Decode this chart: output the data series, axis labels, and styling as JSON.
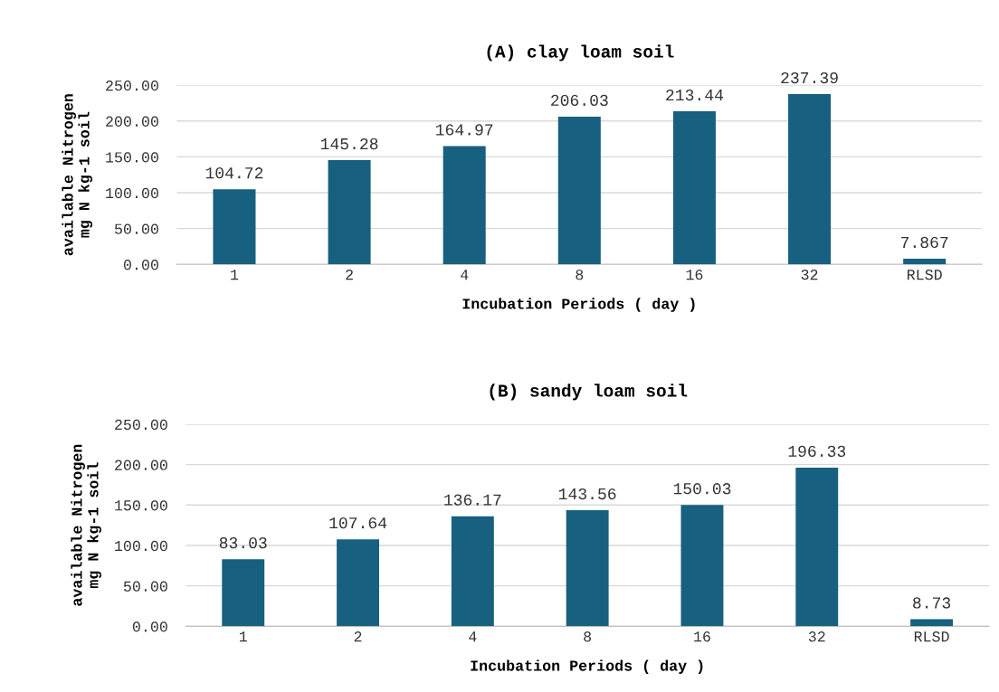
{
  "chart_data": [
    {
      "type": "bar",
      "title": "(A) clay loam soil",
      "xlabel": "Incubation Periods ( day )",
      "ylabel": "available Nitrogen\nmg N kg-1 soil",
      "categories": [
        "1",
        "2",
        "4",
        "8",
        "16",
        "32",
        "RLSD"
      ],
      "values": [
        104.72,
        145.28,
        164.97,
        206.03,
        213.44,
        237.39,
        7.867
      ],
      "color": "#17607f",
      "value_labels": [
        "104.72",
        "145.28",
        "164.97",
        "206.03",
        "213.44",
        "237.39",
        "7.867"
      ],
      "ylim": [
        0,
        250
      ],
      "yticks": [
        {
          "value": 0,
          "label": "0.00"
        },
        {
          "value": 50,
          "label": "50.00"
        },
        {
          "value": 100,
          "label": "100.00"
        },
        {
          "value": 150,
          "label": "150.00"
        },
        {
          "value": 200,
          "label": "200.00"
        },
        {
          "value": 250,
          "label": "250.00"
        }
      ],
      "grid": "y"
    },
    {
      "type": "bar",
      "title": "(B) sandy loam soil",
      "xlabel": "Incubation Periods ( day )",
      "ylabel": "available Nitrogen\nmg N kg-1 soil",
      "categories": [
        "1",
        "2",
        "4",
        "8",
        "16",
        "32",
        "RLSD"
      ],
      "values": [
        83.03,
        107.64,
        136.17,
        143.56,
        150.03,
        196.33,
        8.73
      ],
      "color": "#17607f",
      "value_labels": [
        "83.03",
        "107.64",
        "136.17",
        "143.56",
        "150.03",
        "196.33",
        "8.73"
      ],
      "ylim": [
        0,
        250
      ],
      "yticks": [
        {
          "value": 0,
          "label": "0.00"
        },
        {
          "value": 50,
          "label": "50.00"
        },
        {
          "value": 100,
          "label": "100.00"
        },
        {
          "value": 150,
          "label": "150.00"
        },
        {
          "value": 200,
          "label": "200.00"
        },
        {
          "value": 250,
          "label": "250.00"
        }
      ],
      "grid": "y"
    }
  ]
}
